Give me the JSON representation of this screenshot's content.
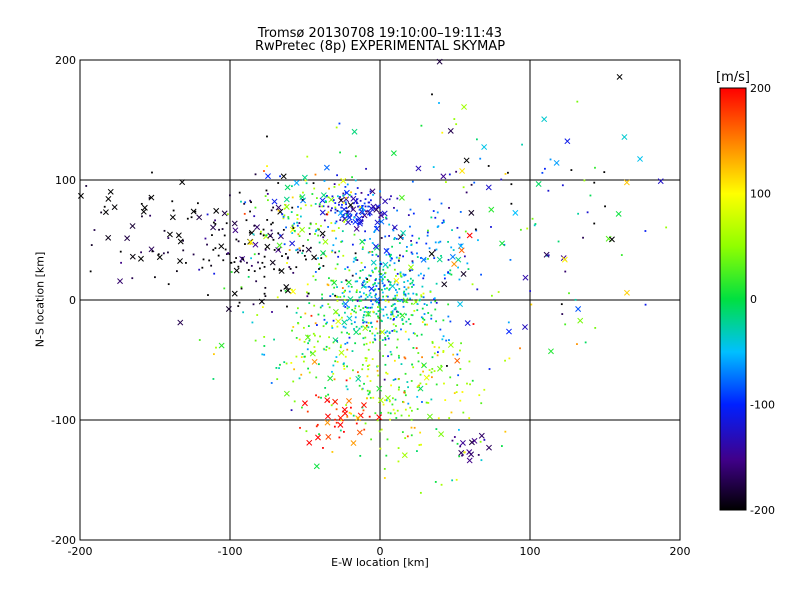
{
  "chart_data": {
    "type": "scatter",
    "title": "Tromsø 20130708 19:10:00–19:11:43",
    "subtitle": "RwPretec (8p) EXPERIMENTAL SKYMAP",
    "xlabel": "E-W location [km]",
    "ylabel": "N-S location [km]",
    "xlim": [
      -200,
      200
    ],
    "ylim": [
      -200,
      200
    ],
    "xticks": [
      "-200",
      "-100",
      "0",
      "100",
      "200"
    ],
    "yticks": [
      "-200",
      "-100",
      "0",
      "100",
      "200"
    ],
    "grid": true,
    "colorbar": {
      "label": "[m/s]",
      "range": [
        -200,
        200
      ],
      "ticks": [
        "200",
        "100",
        "0",
        "-100",
        "-200"
      ],
      "colormap": "rainbow-black"
    },
    "markers": {
      "small": "dot",
      "large": "x"
    },
    "clusters": [
      {
        "cx": -15,
        "cy": 78,
        "sx": 12,
        "sy": 8,
        "n": 120,
        "v": -120,
        "vs": 25,
        "x_frac": 0.25
      },
      {
        "cx": 5,
        "cy": 0,
        "sx": 18,
        "sy": 20,
        "n": 260,
        "v": -30,
        "vs": 40,
        "x_frac": 0.06
      },
      {
        "cx": -20,
        "cy": -30,
        "sx": 35,
        "sy": 35,
        "n": 320,
        "v": 30,
        "vs": 60,
        "x_frac": 0.08
      },
      {
        "cx": -80,
        "cy": 40,
        "sx": 30,
        "sy": 25,
        "n": 160,
        "v": -200,
        "vs": 30,
        "x_frac": 0.2
      },
      {
        "cx": -150,
        "cy": 60,
        "sx": 30,
        "sy": 25,
        "n": 60,
        "v": -200,
        "vs": 20,
        "x_frac": 0.55
      },
      {
        "cx": -50,
        "cy": 70,
        "sx": 25,
        "sy": 25,
        "n": 140,
        "v": 20,
        "vs": 70,
        "x_frac": 0.1
      },
      {
        "cx": 20,
        "cy": 40,
        "sx": 25,
        "sy": 25,
        "n": 150,
        "v": -70,
        "vs": 40,
        "x_frac": 0.08
      },
      {
        "cx": 20,
        "cy": -80,
        "sx": 30,
        "sy": 30,
        "n": 160,
        "v": 60,
        "vs": 50,
        "x_frac": 0.12
      },
      {
        "cx": 100,
        "cy": 40,
        "sx": 55,
        "sy": 50,
        "n": 90,
        "v": -60,
        "vs": 150,
        "x_frac": 0.35
      },
      {
        "cx": 60,
        "cy": 120,
        "sx": 45,
        "sy": 45,
        "n": 50,
        "v": -60,
        "vs": 100,
        "x_frac": 0.4
      },
      {
        "cx": -30,
        "cy": -100,
        "sx": 15,
        "sy": 10,
        "n": 40,
        "v": 180,
        "vs": 30,
        "x_frac": 0.4
      },
      {
        "cx": 60,
        "cy": -125,
        "sx": 6,
        "sy": 6,
        "n": 15,
        "v": -160,
        "vs": 15,
        "x_frac": 0.6
      }
    ]
  }
}
